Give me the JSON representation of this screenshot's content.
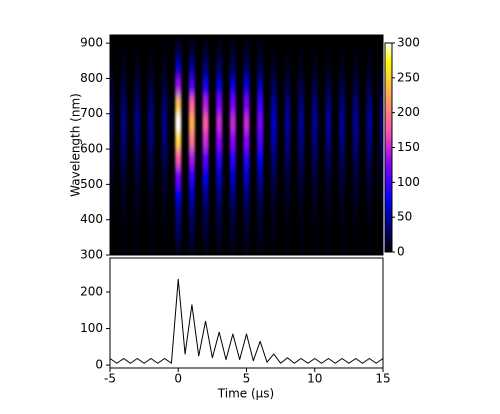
{
  "chart_data": [
    {
      "type": "heatmap",
      "ylabel": "Wavelength (nm)",
      "x": [
        -5,
        -4,
        -3,
        -2,
        -1,
        0,
        1,
        2,
        3,
        4,
        5,
        6,
        7,
        8,
        9,
        10,
        11,
        12,
        13,
        14,
        15
      ],
      "y": [
        325,
        375,
        425,
        475,
        525,
        575,
        625,
        675,
        725,
        775,
        825,
        875
      ],
      "z": [
        [
          2,
          2,
          2,
          2,
          2,
          15,
          12,
          9,
          8,
          8,
          8,
          6,
          3,
          2,
          2,
          2,
          2,
          2,
          2,
          2,
          2
        ],
        [
          4,
          4,
          4,
          4,
          4,
          30,
          23,
          18,
          15,
          15,
          15,
          12,
          6,
          5,
          5,
          5,
          5,
          5,
          5,
          5,
          5
        ],
        [
          6,
          6,
          6,
          6,
          6,
          45,
          35,
          27,
          23,
          23,
          23,
          18,
          9,
          7,
          7,
          7,
          7,
          7,
          7,
          7,
          7
        ],
        [
          10,
          10,
          10,
          10,
          10,
          75,
          58,
          45,
          38,
          38,
          38,
          30,
          15,
          11,
          11,
          11,
          11,
          11,
          11,
          11,
          11
        ],
        [
          16,
          16,
          16,
          16,
          16,
          120,
          92,
          72,
          60,
          60,
          60,
          48,
          24,
          18,
          18,
          18,
          18,
          18,
          18,
          18,
          18
        ],
        [
          24,
          24,
          24,
          24,
          24,
          180,
          138,
          108,
          90,
          90,
          90,
          72,
          36,
          27,
          27,
          27,
          27,
          27,
          27,
          27,
          27
        ],
        [
          34,
          34,
          34,
          34,
          34,
          255,
          196,
          153,
          128,
          128,
          128,
          102,
          51,
          38,
          38,
          38,
          38,
          38,
          38,
          38,
          38
        ],
        [
          40,
          40,
          40,
          40,
          40,
          300,
          230,
          180,
          150,
          150,
          150,
          120,
          60,
          45,
          45,
          45,
          45,
          45,
          45,
          45,
          45
        ],
        [
          32,
          32,
          32,
          32,
          32,
          240,
          184,
          144,
          120,
          120,
          120,
          96,
          48,
          36,
          36,
          36,
          36,
          36,
          36,
          36,
          36
        ],
        [
          18,
          18,
          18,
          18,
          18,
          135,
          104,
          81,
          68,
          68,
          68,
          54,
          27,
          20,
          20,
          20,
          20,
          20,
          20,
          20,
          20
        ],
        [
          8,
          8,
          8,
          8,
          8,
          60,
          46,
          36,
          30,
          30,
          30,
          24,
          12,
          9,
          9,
          9,
          9,
          9,
          9,
          9,
          9
        ],
        [
          3,
          3,
          3,
          3,
          3,
          24,
          18,
          14,
          12,
          12,
          12,
          10,
          5,
          4,
          4,
          4,
          4,
          4,
          4,
          4,
          4
        ]
      ],
      "xlim": [
        -5,
        15
      ],
      "ylim": [
        300,
        923
      ],
      "yticks": [
        300,
        400,
        500,
        600,
        700,
        800,
        900
      ],
      "clim": [
        0,
        300
      ],
      "cticks": [
        0,
        50,
        100,
        150,
        200,
        250,
        300
      ]
    },
    {
      "type": "line",
      "xlabel": "Time (μs)",
      "color": "#000000",
      "x": [
        -5,
        -4.5,
        -4,
        -3.5,
        -3,
        -2.5,
        -2,
        -1.5,
        -1,
        -0.5,
        0,
        0.5,
        1,
        1.5,
        2,
        2.5,
        3,
        3.5,
        4,
        4.5,
        5,
        5.5,
        6,
        6.5,
        7,
        7.5,
        8,
        8.5,
        9,
        9.5,
        10,
        10.5,
        11,
        11.5,
        12,
        12.5,
        13,
        13.5,
        14,
        14.5,
        15
      ],
      "values": [
        18,
        5,
        18,
        5,
        18,
        5,
        18,
        5,
        18,
        5,
        235,
        30,
        165,
        25,
        120,
        20,
        90,
        15,
        85,
        15,
        85,
        12,
        65,
        8,
        30,
        5,
        20,
        5,
        18,
        5,
        18,
        5,
        18,
        5,
        18,
        5,
        18,
        5,
        18,
        5,
        18
      ],
      "xlim": [
        -5,
        15
      ],
      "xticks": [
        -5,
        0,
        5,
        10,
        15
      ],
      "ylim": [
        -8,
        293
      ],
      "yticks": [
        0,
        100,
        200
      ]
    }
  ]
}
